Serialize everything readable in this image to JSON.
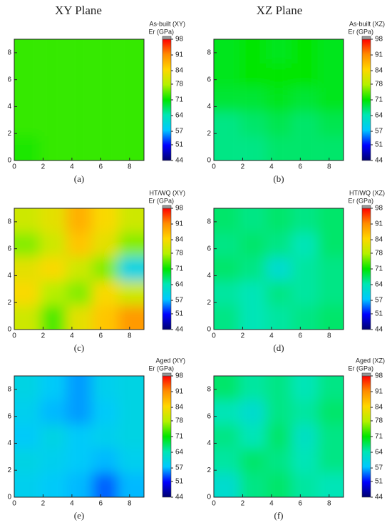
{
  "column_titles": [
    "XY Plane",
    "XZ Plane"
  ],
  "colorscale": [
    "#00006e",
    "#0000ff",
    "#00c8ff",
    "#00e6b4",
    "#00e600",
    "#b4f000",
    "#ffd700",
    "#ff8c00",
    "#ff0000"
  ],
  "chart_data": [
    {
      "type": "contour",
      "panel_label": "(a)",
      "colorbar_title": "As-built (XY)",
      "colorbar_unit": "Er (GPa)",
      "x": [
        0.9,
        2.7,
        4.5,
        6.3,
        8.1
      ],
      "y": [
        0.9,
        2.7,
        4.5,
        6.3,
        8.1
      ],
      "z": [
        [
          72,
          73,
          73,
          73,
          73
        ],
        [
          73,
          73,
          73,
          73,
          73
        ],
        [
          73,
          73,
          73,
          73,
          73
        ],
        [
          73,
          73,
          73,
          73,
          73
        ],
        [
          73,
          73,
          73,
          73,
          73
        ]
      ],
      "xlim": [
        0,
        9
      ],
      "ylim": [
        0,
        9
      ],
      "xticks": [
        0,
        2,
        4,
        6,
        8
      ],
      "yticks": [
        0,
        2,
        4,
        6,
        8
      ],
      "zlim": [
        44,
        98
      ],
      "zticks": [
        44,
        51,
        57,
        64,
        71,
        78,
        84,
        91,
        98
      ]
    },
    {
      "type": "contour",
      "panel_label": "(b)",
      "colorbar_title": "As-built (XZ)",
      "colorbar_unit": "Er (GPa)",
      "x": [
        0.9,
        2.7,
        4.5,
        6.3,
        8.1
      ],
      "y": [
        0.9,
        2.7,
        4.5,
        6.3,
        8.1
      ],
      "z": [
        [
          66,
          66,
          67,
          67,
          67
        ],
        [
          66,
          67,
          68,
          67,
          68
        ],
        [
          69,
          69,
          70,
          69,
          70
        ],
        [
          70,
          71,
          71,
          71,
          70
        ],
        [
          70,
          71,
          70,
          71,
          70
        ]
      ],
      "xlim": [
        0,
        9
      ],
      "ylim": [
        0,
        9
      ],
      "xticks": [
        0,
        2,
        4,
        6,
        8
      ],
      "yticks": [
        0,
        2,
        4,
        6,
        8
      ],
      "zlim": [
        44,
        98
      ],
      "zticks": [
        44,
        51,
        57,
        64,
        71,
        78,
        84,
        91,
        98
      ]
    },
    {
      "type": "contour",
      "panel_label": "(c)",
      "colorbar_title": "HT/WQ (XY)",
      "colorbar_unit": "Er (GPa)",
      "x": [
        0.9,
        2.7,
        4.5,
        6.3,
        8.1
      ],
      "y": [
        0.9,
        2.7,
        4.5,
        6.3,
        8.1
      ],
      "z": [
        [
          80,
          74,
          82,
          86,
          90
        ],
        [
          84,
          78,
          76,
          84,
          80
        ],
        [
          82,
          84,
          80,
          76,
          60
        ],
        [
          76,
          80,
          86,
          82,
          76
        ],
        [
          80,
          82,
          88,
          84,
          80
        ]
      ],
      "xlim": [
        0,
        9
      ],
      "ylim": [
        0,
        9
      ],
      "xticks": [
        0,
        2,
        4,
        6,
        8
      ],
      "yticks": [
        0,
        2,
        4,
        6,
        8
      ],
      "zlim": [
        44,
        98
      ],
      "zticks": [
        44,
        51,
        57,
        64,
        71,
        78,
        84,
        91,
        98
      ]
    },
    {
      "type": "contour",
      "panel_label": "(d)",
      "colorbar_title": "HT/WQ (XZ)",
      "colorbar_unit": "Er (GPa)",
      "x": [
        0.9,
        2.7,
        4.5,
        6.3,
        8.1
      ],
      "y": [
        0.9,
        2.7,
        4.5,
        6.3,
        8.1
      ],
      "z": [
        [
          66,
          64,
          65,
          66,
          67
        ],
        [
          65,
          64,
          66,
          65,
          66
        ],
        [
          67,
          66,
          62,
          65,
          66
        ],
        [
          66,
          67,
          66,
          64,
          67
        ],
        [
          67,
          66,
          67,
          66,
          67
        ]
      ],
      "xlim": [
        0,
        9
      ],
      "ylim": [
        0,
        9
      ],
      "xticks": [
        0,
        2,
        4,
        6,
        8
      ],
      "yticks": [
        0,
        2,
        4,
        6,
        8
      ],
      "zlim": [
        44,
        98
      ],
      "zticks": [
        44,
        51,
        57,
        64,
        71,
        78,
        84,
        91,
        98
      ]
    },
    {
      "type": "contour",
      "panel_label": "(e)",
      "colorbar_title": "Aged (XY)",
      "colorbar_unit": "Er (GPa)",
      "x": [
        0.9,
        2.7,
        4.5,
        6.3,
        8.1
      ],
      "y": [
        0.9,
        2.7,
        4.5,
        6.3,
        8.1
      ],
      "z": [
        [
          59,
          58,
          57,
          54,
          57
        ],
        [
          60,
          59,
          58,
          57,
          59
        ],
        [
          58,
          60,
          58,
          59,
          60
        ],
        [
          59,
          57,
          56,
          58,
          60
        ],
        [
          60,
          58,
          56,
          59,
          60
        ]
      ],
      "xlim": [
        0,
        9
      ],
      "ylim": [
        0,
        9
      ],
      "xticks": [
        0,
        2,
        4,
        6,
        8
      ],
      "yticks": [
        0,
        2,
        4,
        6,
        8
      ],
      "zlim": [
        44,
        98
      ],
      "zticks": [
        44,
        51,
        57,
        64,
        71,
        78,
        84,
        91,
        98
      ]
    },
    {
      "type": "contour",
      "panel_label": "(f)",
      "colorbar_title": "Aged (XZ)",
      "colorbar_unit": "Er (GPa)",
      "x": [
        0.9,
        2.7,
        4.5,
        6.3,
        8.1
      ],
      "y": [
        0.9,
        2.7,
        4.5,
        6.3,
        8.1
      ],
      "z": [
        [
          62,
          66,
          67,
          65,
          64
        ],
        [
          65,
          67,
          66,
          64,
          66
        ],
        [
          66,
          64,
          67,
          63,
          66
        ],
        [
          64,
          62,
          66,
          65,
          67
        ],
        [
          67,
          65,
          66,
          64,
          66
        ]
      ],
      "xlim": [
        0,
        9
      ],
      "ylim": [
        0,
        9
      ],
      "xticks": [
        0,
        2,
        4,
        6,
        8
      ],
      "yticks": [
        0,
        2,
        4,
        6,
        8
      ],
      "zlim": [
        44,
        98
      ],
      "zticks": [
        44,
        51,
        57,
        64,
        71,
        78,
        84,
        91,
        98
      ]
    }
  ]
}
